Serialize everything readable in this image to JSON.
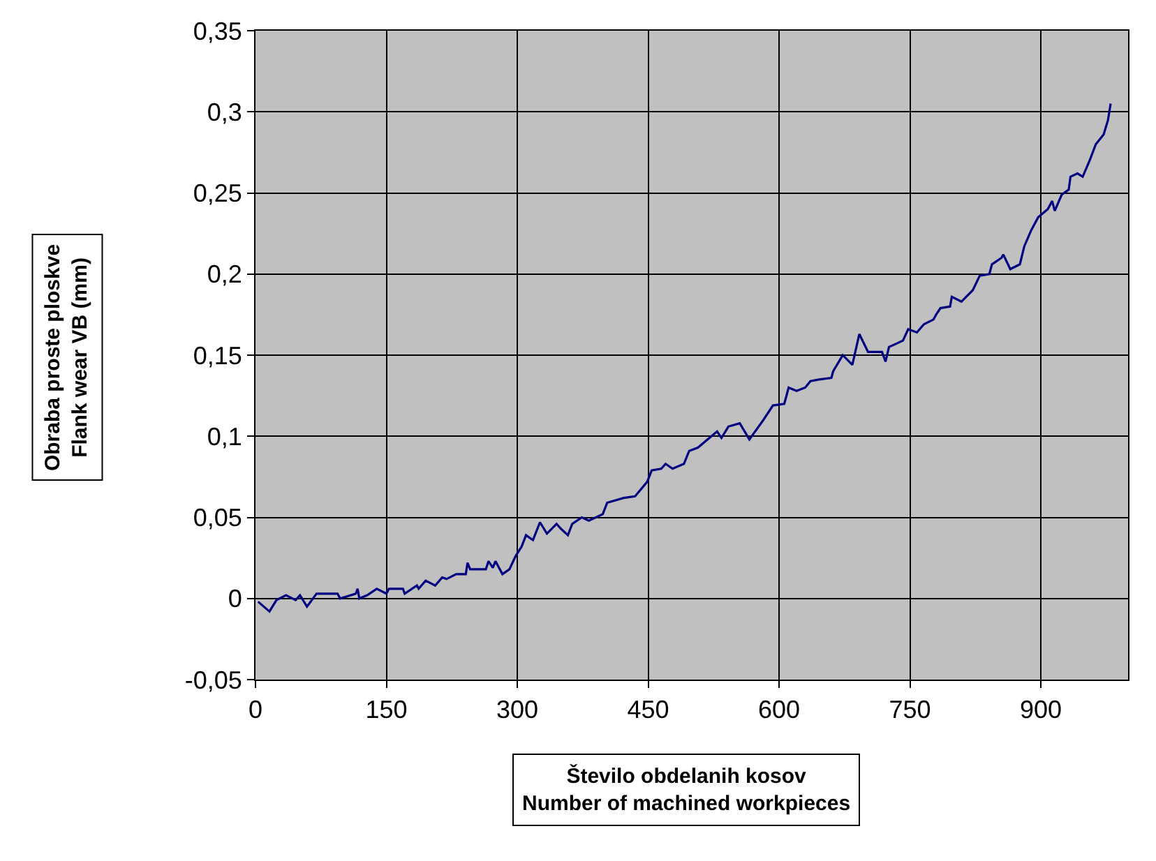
{
  "chart_data": {
    "type": "line",
    "xlabel": "Število obdelanih kosov\nNumber of machined workpieces",
    "ylabel": "Obraba proste ploskve\nFlank wear VB (mm)",
    "x": [
      3,
      16,
      24,
      35,
      46,
      51,
      59,
      70,
      94,
      97,
      115,
      117,
      119,
      128,
      139,
      150,
      153,
      169,
      171,
      185,
      187,
      195,
      206,
      214,
      219,
      230,
      241,
      243,
      246,
      264,
      267,
      272,
      275,
      283,
      291,
      298,
      305,
      310,
      318,
      326,
      334,
      345,
      350,
      358,
      363,
      374,
      382,
      398,
      403,
      422,
      435,
      449,
      454,
      465,
      470,
      478,
      491,
      497,
      507,
      529,
      534,
      542,
      555,
      566,
      582,
      593,
      606,
      611,
      620,
      630,
      636,
      646,
      660,
      662,
      673,
      684,
      692,
      702,
      718,
      722,
      726,
      742,
      748,
      758,
      766,
      777,
      780,
      785,
      796,
      798,
      809,
      822,
      830,
      841,
      844,
      855,
      857,
      865,
      876,
      881,
      889,
      897,
      908,
      913,
      916,
      924,
      932,
      934,
      942,
      948,
      956,
      963,
      972,
      977,
      980
    ],
    "series": [
      {
        "color": "#000080",
        "values": [
          -0.002,
          -0.008,
          -0.001,
          0.002,
          -0.001,
          0.002,
          -0.005,
          0.003,
          0.003,
          0,
          0.003,
          0.006,
          0,
          0.002,
          0.006,
          0.003,
          0.006,
          0.006,
          0.003,
          0.008,
          0.006,
          0.011,
          0.008,
          0.013,
          0.012,
          0.015,
          0.015,
          0.022,
          0.018,
          0.018,
          0.023,
          0.019,
          0.023,
          0.015,
          0.018,
          0.026,
          0.032,
          0.039,
          0.036,
          0.047,
          0.04,
          0.046,
          0.043,
          0.039,
          0.046,
          0.05,
          0.048,
          0.052,
          0.059,
          0.062,
          0.063,
          0.072,
          0.079,
          0.08,
          0.083,
          0.08,
          0.083,
          0.091,
          0.093,
          0.103,
          0.099,
          0.106,
          0.108,
          0.098,
          0.11,
          0.119,
          0.12,
          0.13,
          0.128,
          0.13,
          0.134,
          0.135,
          0.136,
          0.14,
          0.15,
          0.144,
          0.163,
          0.152,
          0.152,
          0.146,
          0.155,
          0.159,
          0.166,
          0.164,
          0.169,
          0.172,
          0.175,
          0.179,
          0.18,
          0.186,
          0.183,
          0.19,
          0.199,
          0.2,
          0.206,
          0.21,
          0.212,
          0.203,
          0.206,
          0.217,
          0.227,
          0.235,
          0.24,
          0.245,
          0.239,
          0.249,
          0.252,
          0.26,
          0.262,
          0.26,
          0.27,
          0.28,
          0.286,
          0.295,
          0.305
        ]
      }
    ],
    "xlim": [
      0,
      1000
    ],
    "xticks": [
      0,
      150,
      300,
      450,
      600,
      750,
      900
    ],
    "ylim": [
      -0.05,
      0.35
    ],
    "yticks": [
      {
        "value": -0.05,
        "label": "-0,05"
      },
      0,
      {
        "value": 0.05,
        "label": "0,05"
      },
      {
        "value": 0.1,
        "label": "0,1"
      },
      {
        "value": 0.15,
        "label": "0,15"
      },
      {
        "value": 0.2,
        "label": "0,2"
      },
      {
        "value": 0.25,
        "label": "0,25"
      },
      {
        "value": 0.3,
        "label": "0,3"
      },
      {
        "value": 0.35,
        "label": "0,35"
      }
    ],
    "grid": true,
    "marker": "none",
    "line_style": "solid"
  }
}
